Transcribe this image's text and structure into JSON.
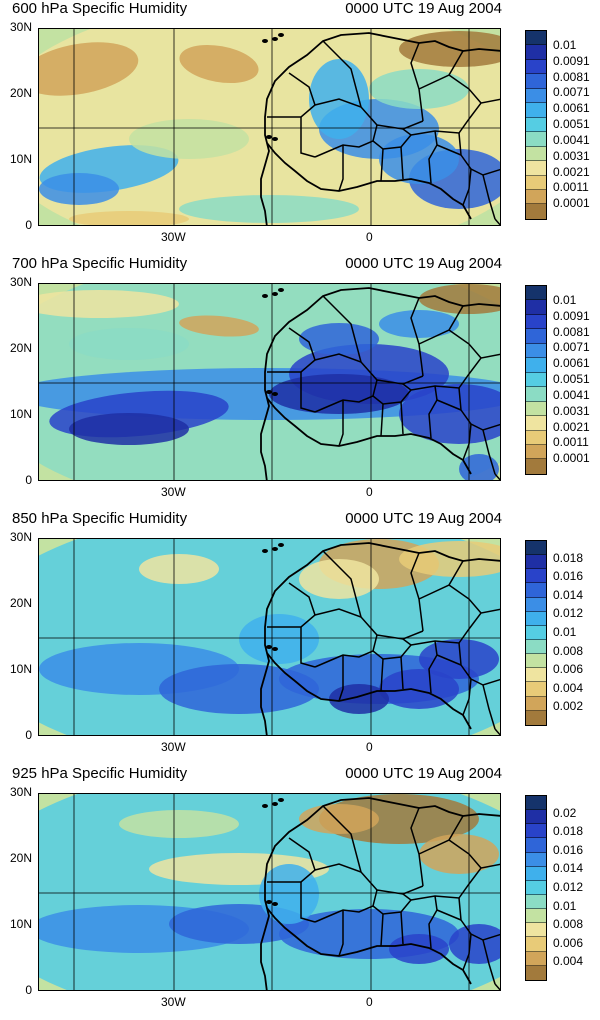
{
  "panels": [
    {
      "title": "600 hPa Specific Humidity",
      "time": "0000 UTC 19 Aug 2004",
      "colorbar_labels": [
        "0.01",
        "0.0091",
        "0.0081",
        "0.0071",
        "0.0061",
        "0.0051",
        "0.0041",
        "0.0031",
        "0.0021",
        "0.0011",
        "0.0001"
      ]
    },
    {
      "title": "700 hPa Specific Humidity",
      "time": "0000 UTC 19 Aug 2004",
      "colorbar_labels": [
        "0.01",
        "0.0091",
        "0.0081",
        "0.0071",
        "0.0061",
        "0.0051",
        "0.0041",
        "0.0031",
        "0.0021",
        "0.0011",
        "0.0001"
      ]
    },
    {
      "title": "850 hPa Specific Humidity",
      "time": "0000 UTC 19 Aug 2004",
      "colorbar_labels": [
        "0.018",
        "0.016",
        "0.014",
        "0.012",
        "0.01",
        "0.008",
        "0.006",
        "0.004",
        "0.002"
      ]
    },
    {
      "title": "925 hPa Specific Humidity",
      "time": "0000 UTC 19 Aug 2004",
      "colorbar_labels": [
        "0.02",
        "0.018",
        "0.016",
        "0.014",
        "0.012",
        "0.01",
        "0.008",
        "0.006",
        "0.004"
      ]
    }
  ],
  "axes": {
    "y_ticks": [
      "30N",
      "20N",
      "10N",
      "0"
    ],
    "x_ticks": [
      "30W",
      "0"
    ]
  },
  "colors": {
    "palette": [
      "#15336b",
      "#1f2fa5",
      "#2943c9",
      "#2f65d8",
      "#3b8ee6",
      "#3fb0ec",
      "#55cde3",
      "#8bdcc4",
      "#c3e2a2",
      "#efe4a0",
      "#e8cb78",
      "#d1a55a",
      "#a27a3c"
    ],
    "land_outline": "#000000"
  }
}
